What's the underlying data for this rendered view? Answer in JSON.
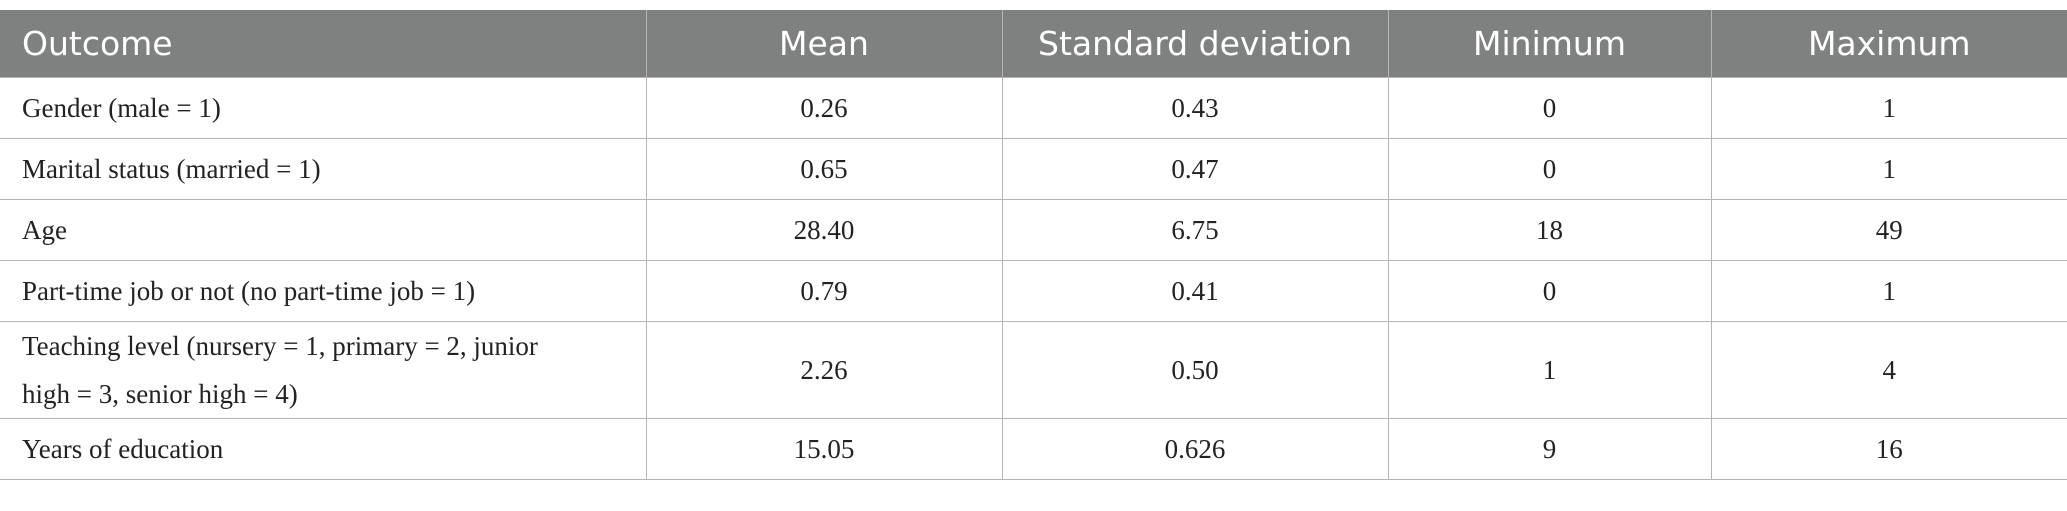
{
  "table": {
    "header": [
      "Outcome",
      "Mean",
      "Standard deviation",
      "Minimum",
      "Maximum"
    ],
    "rows": [
      [
        "Gender (male = 1)",
        "0.26",
        "0.43",
        "0",
        "1"
      ],
      [
        "Marital status (married = 1)",
        "0.65",
        "0.47",
        "0",
        "1"
      ],
      [
        "Age",
        "28.40",
        "6.75",
        "18",
        "49"
      ],
      [
        "Part-time job or not (no part-time job = 1)",
        "0.79",
        "0.41",
        "0",
        "1"
      ],
      [
        "Teaching level (nursery = 1, primary = 2, junior high = 3, senior high = 4)",
        "2.26",
        "0.50",
        "1",
        "4"
      ],
      [
        "Years of education",
        "15.05",
        "0.626",
        "9",
        "16"
      ]
    ]
  }
}
